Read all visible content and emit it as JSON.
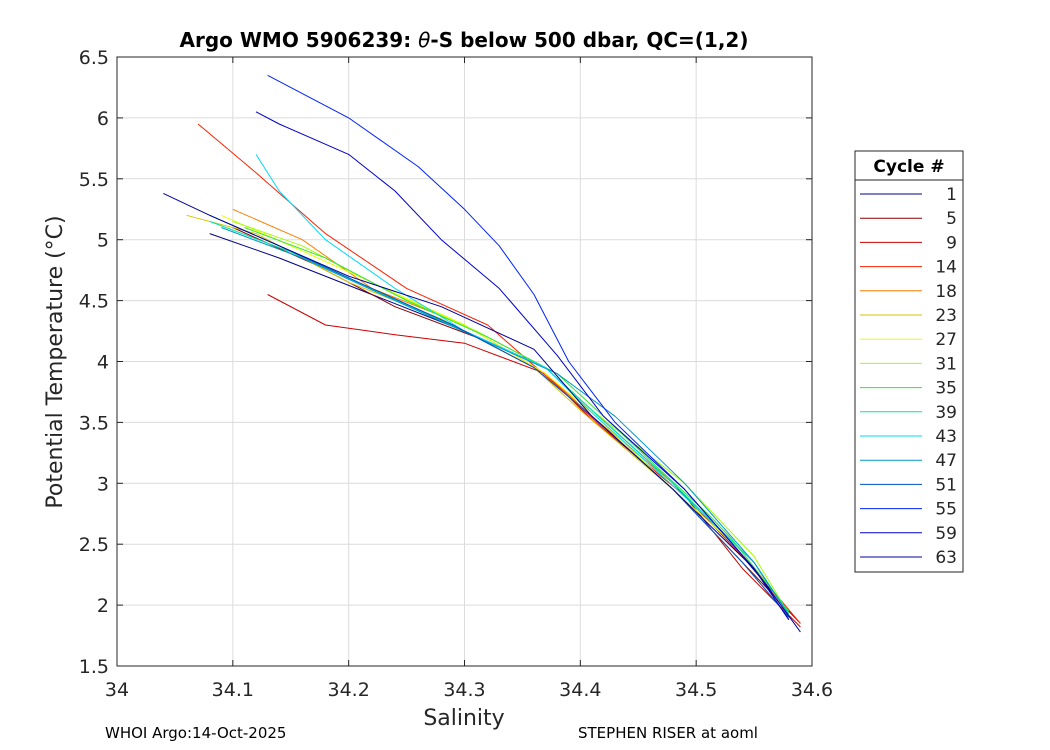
{
  "chart_data": {
    "type": "line",
    "title": "Argo WMO 5906239: θ-S below 500 dbar,  QC=(1,2)",
    "title_prefix": "Argo WMO 5906239: ",
    "title_theta": "θ",
    "title_suffix": "-S below 500 dbar,  QC=(1,2)",
    "xlabel": "Salinity",
    "ylabel": "Potential Temperature (°C)",
    "xlim": [
      34.0,
      34.6
    ],
    "ylim": [
      1.5,
      6.5
    ],
    "xticks": [
      "34",
      "34.1",
      "34.2",
      "34.3",
      "34.4",
      "34.5",
      "34.6"
    ],
    "yticks": [
      "1.5",
      "2",
      "2.5",
      "3",
      "3.5",
      "4",
      "4.5",
      "5",
      "5.5",
      "6",
      "6.5"
    ],
    "grid": true,
    "legend_title": "Cycle #",
    "legend_position": "outside-right",
    "series": [
      {
        "name": "1",
        "color": "#00008b",
        "points": [
          [
            34.08,
            5.05
          ],
          [
            34.14,
            4.85
          ],
          [
            34.22,
            4.55
          ],
          [
            34.3,
            4.25
          ],
          [
            34.37,
            3.95
          ],
          [
            34.41,
            3.6
          ],
          [
            34.48,
            3.0
          ],
          [
            34.54,
            2.4
          ],
          [
            34.58,
            1.95
          ]
        ]
      },
      {
        "name": "5",
        "color": "#8b0000",
        "points": [
          [
            34.1,
            5.1
          ],
          [
            34.17,
            4.8
          ],
          [
            34.24,
            4.45
          ],
          [
            34.31,
            4.2
          ],
          [
            34.37,
            3.9
          ],
          [
            34.41,
            3.55
          ],
          [
            34.48,
            2.95
          ],
          [
            34.54,
            2.35
          ],
          [
            34.59,
            1.85
          ]
        ]
      },
      {
        "name": "9",
        "color": "#cc0000",
        "points": [
          [
            34.13,
            4.55
          ],
          [
            34.18,
            4.3
          ],
          [
            34.24,
            4.22
          ],
          [
            34.3,
            4.15
          ],
          [
            34.37,
            3.9
          ],
          [
            34.41,
            3.52
          ],
          [
            34.49,
            2.9
          ],
          [
            34.54,
            2.3
          ],
          [
            34.59,
            1.82
          ]
        ]
      },
      {
        "name": "14",
        "color": "#ff2200",
        "points": [
          [
            34.07,
            5.95
          ],
          [
            34.12,
            5.55
          ],
          [
            34.18,
            5.05
          ],
          [
            34.25,
            4.6
          ],
          [
            34.32,
            4.3
          ],
          [
            34.38,
            3.8
          ],
          [
            34.42,
            3.45
          ],
          [
            34.49,
            2.9
          ],
          [
            34.55,
            2.3
          ],
          [
            34.59,
            1.85
          ]
        ]
      },
      {
        "name": "18",
        "color": "#ff7f00",
        "points": [
          [
            34.1,
            5.25
          ],
          [
            34.16,
            5.0
          ],
          [
            34.22,
            4.6
          ],
          [
            34.3,
            4.3
          ],
          [
            34.37,
            3.9
          ],
          [
            34.41,
            3.55
          ],
          [
            34.48,
            3.0
          ],
          [
            34.55,
            2.35
          ],
          [
            34.58,
            1.9
          ]
        ]
      },
      {
        "name": "23",
        "color": "#d6c600",
        "points": [
          [
            34.06,
            5.2
          ],
          [
            34.12,
            5.05
          ],
          [
            34.2,
            4.65
          ],
          [
            34.28,
            4.35
          ],
          [
            34.36,
            3.95
          ],
          [
            34.4,
            3.6
          ],
          [
            34.48,
            2.95
          ],
          [
            34.54,
            2.35
          ],
          [
            34.58,
            1.9
          ]
        ]
      },
      {
        "name": "27",
        "color": "#e5ff00",
        "points": [
          [
            34.09,
            5.2
          ],
          [
            34.15,
            4.95
          ],
          [
            34.22,
            4.65
          ],
          [
            34.3,
            4.3
          ],
          [
            34.37,
            3.9
          ],
          [
            34.41,
            3.58
          ],
          [
            34.48,
            2.95
          ],
          [
            34.55,
            2.35
          ],
          [
            34.58,
            1.92
          ]
        ]
      },
      {
        "name": "31",
        "color": "#a6ff00",
        "points": [
          [
            34.1,
            5.15
          ],
          [
            34.16,
            4.95
          ],
          [
            34.24,
            4.55
          ],
          [
            34.31,
            4.25
          ],
          [
            34.37,
            3.95
          ],
          [
            34.41,
            3.6
          ],
          [
            34.49,
            3.0
          ],
          [
            34.55,
            2.4
          ],
          [
            34.58,
            1.93
          ]
        ]
      },
      {
        "name": "35",
        "color": "#33e633",
        "points": [
          [
            34.11,
            5.1
          ],
          [
            34.18,
            4.85
          ],
          [
            34.25,
            4.5
          ],
          [
            34.32,
            4.2
          ],
          [
            34.38,
            3.9
          ],
          [
            34.42,
            3.55
          ],
          [
            34.47,
            3.1
          ],
          [
            34.51,
            2.75
          ],
          [
            34.53,
            2.55
          ],
          [
            34.58,
            1.95
          ]
        ]
      },
      {
        "name": "39",
        "color": "#00e5a8",
        "points": [
          [
            34.08,
            5.15
          ],
          [
            34.15,
            4.9
          ],
          [
            34.23,
            4.55
          ],
          [
            34.3,
            4.25
          ],
          [
            34.37,
            3.95
          ],
          [
            34.41,
            3.6
          ],
          [
            34.48,
            3.0
          ],
          [
            34.55,
            2.35
          ],
          [
            34.58,
            1.93
          ]
        ]
      },
      {
        "name": "43",
        "color": "#00d9ff",
        "points": [
          [
            34.12,
            5.7
          ],
          [
            34.14,
            5.4
          ],
          [
            34.18,
            5.0
          ],
          [
            34.24,
            4.6
          ],
          [
            34.3,
            4.25
          ],
          [
            34.37,
            3.95
          ],
          [
            34.41,
            3.58
          ],
          [
            34.48,
            2.98
          ],
          [
            34.55,
            2.35
          ],
          [
            34.58,
            1.92
          ]
        ]
      },
      {
        "name": "47",
        "color": "#0099cc",
        "points": [
          [
            34.09,
            5.1
          ],
          [
            34.16,
            4.85
          ],
          [
            34.24,
            4.5
          ],
          [
            34.31,
            4.2
          ],
          [
            34.38,
            3.9
          ],
          [
            34.43,
            3.55
          ],
          [
            34.49,
            3.0
          ],
          [
            34.55,
            2.35
          ],
          [
            34.58,
            1.92
          ]
        ]
      },
      {
        "name": "51",
        "color": "#0050c8",
        "points": [
          [
            34.08,
            5.2
          ],
          [
            34.14,
            4.95
          ],
          [
            34.22,
            4.6
          ],
          [
            34.29,
            4.3
          ],
          [
            34.36,
            3.95
          ],
          [
            34.41,
            3.55
          ],
          [
            34.48,
            2.95
          ],
          [
            34.54,
            2.35
          ],
          [
            34.58,
            1.9
          ]
        ]
      },
      {
        "name": "55",
        "color": "#0022ff",
        "points": [
          [
            34.13,
            6.35
          ],
          [
            34.2,
            6.0
          ],
          [
            34.26,
            5.6
          ],
          [
            34.3,
            5.25
          ],
          [
            34.33,
            4.95
          ],
          [
            34.36,
            4.55
          ],
          [
            34.39,
            4.0
          ],
          [
            34.43,
            3.5
          ],
          [
            34.49,
            2.95
          ],
          [
            34.55,
            2.3
          ],
          [
            34.58,
            1.88
          ]
        ]
      },
      {
        "name": "59",
        "color": "#0000cc",
        "points": [
          [
            34.12,
            6.05
          ],
          [
            34.14,
            5.95
          ],
          [
            34.2,
            5.7
          ],
          [
            34.24,
            5.4
          ],
          [
            34.28,
            5.0
          ],
          [
            34.33,
            4.6
          ],
          [
            34.38,
            4.05
          ],
          [
            34.42,
            3.55
          ],
          [
            34.49,
            2.95
          ],
          [
            34.55,
            2.3
          ],
          [
            34.58,
            1.88
          ]
        ]
      },
      {
        "name": "63",
        "color": "#000099",
        "points": [
          [
            34.04,
            5.38
          ],
          [
            34.08,
            5.2
          ],
          [
            34.14,
            4.95
          ],
          [
            34.2,
            4.7
          ],
          [
            34.28,
            4.45
          ],
          [
            34.36,
            4.1
          ],
          [
            34.41,
            3.55
          ],
          [
            34.48,
            2.95
          ],
          [
            34.55,
            2.3
          ],
          [
            34.59,
            1.78
          ]
        ]
      }
    ]
  },
  "footer": {
    "left": "WHOI Argo:14-Oct-2025",
    "right": "STEPHEN RISER at aoml"
  }
}
